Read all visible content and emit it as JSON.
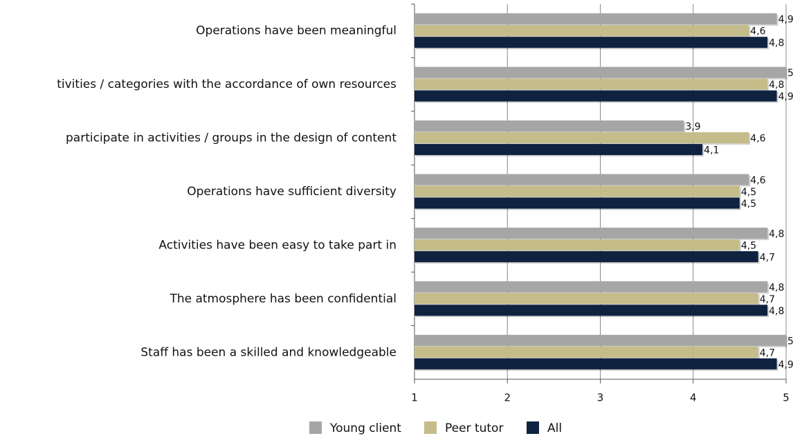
{
  "chart_data": {
    "type": "bar",
    "orientation": "horizontal",
    "categories": [
      "Operations have been meaningful",
      "tivities / categories with the accordance of own resources",
      "participate in activities / groups in the design of content",
      "Operations have sufficient diversity",
      "Activities have been easy to take part in",
      "The atmosphere has been confidential",
      "Staff has been a skilled and knowledgeable"
    ],
    "series": [
      {
        "name": "Young client",
        "color": "#a6a6a6",
        "values": [
          4.9,
          5,
          3.9,
          4.6,
          4.8,
          4.8,
          5
        ],
        "value_labels": [
          "4,9",
          "5",
          "3,9",
          "4,6",
          "4,8",
          "4,8",
          "5"
        ]
      },
      {
        "name": "Peer tutor",
        "color": "#c4bd8a",
        "values": [
          4.6,
          4.8,
          4.6,
          4.5,
          4.5,
          4.7,
          4.7
        ],
        "value_labels": [
          "4,6",
          "4,8",
          "4,6",
          "4,5",
          "4,5",
          "4,7",
          "4,7"
        ]
      },
      {
        "name": "All",
        "color": "#0f2340",
        "values": [
          4.8,
          4.9,
          4.1,
          4.5,
          4.7,
          4.8,
          4.9
        ],
        "value_labels": [
          "4,8",
          "4,9",
          "4,1",
          "4,5",
          "4,7",
          "4,8",
          "4,9"
        ]
      }
    ],
    "xlim": [
      1,
      5
    ],
    "xticks": [
      1,
      2,
      3,
      4,
      5
    ],
    "grid": true,
    "legend": "bottom"
  }
}
